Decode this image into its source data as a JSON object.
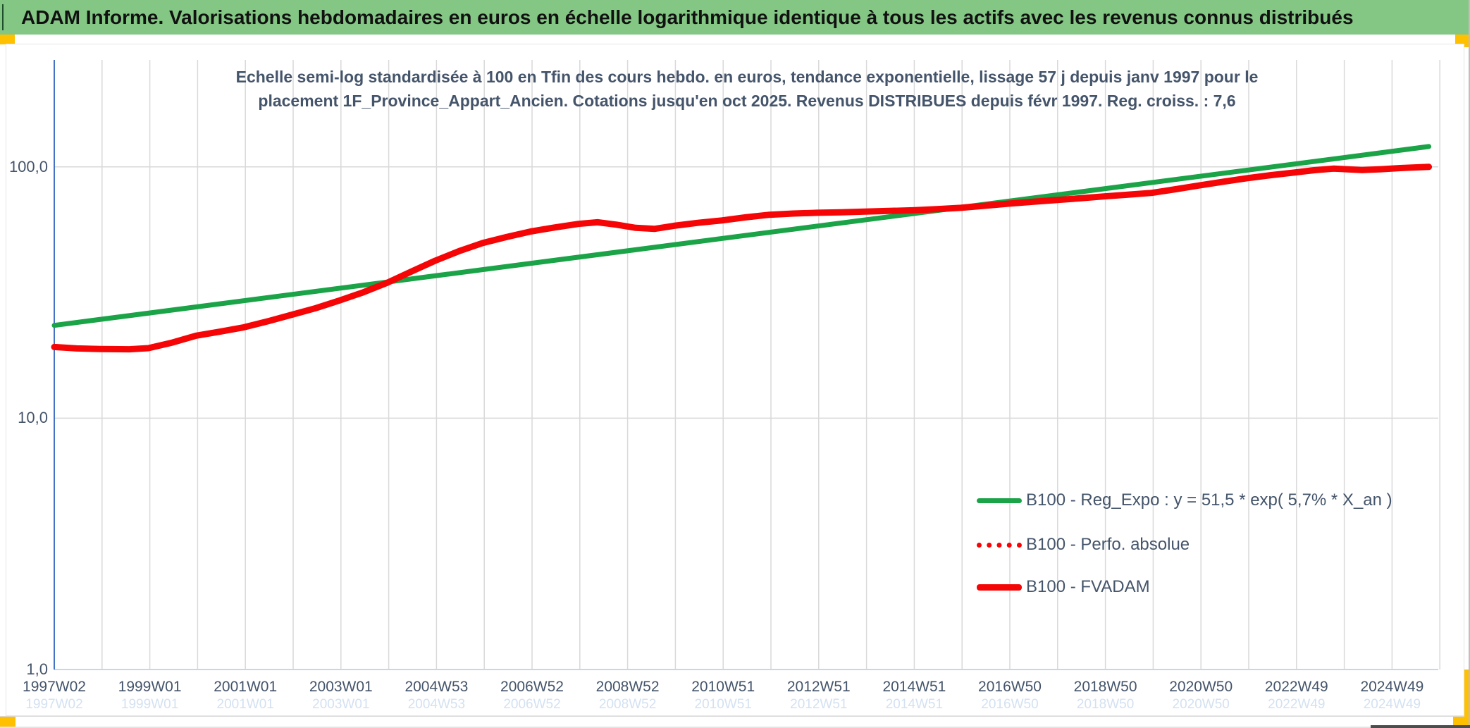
{
  "header": {
    "title": "ADAM Informe. Valorisations hebdomadaires en euros en échelle logarithmique identique à tous les actifs avec les revenus connus distribués"
  },
  "colors": {
    "header_bg": "#84C784",
    "accent_orange": "#FFC000",
    "title_text": "#44546A",
    "axis_text": "#44546A",
    "gridline": "#D9D9D9",
    "y_axis_line": "#4472C4",
    "x_axis_line": "#C9D6E8",
    "green_series": "#1AA347",
    "red_series": "#F50505"
  },
  "chart_data": {
    "type": "line",
    "title_lines": [
      "Echelle semi-log standardisée à 100 en Tfin des cours hebdo. en euros, tendance exponentielle, lissage 57 j depuis janv 1997 pour le",
      "placement 1F_Province_Appart_Ancien. Cotations jusqu'en oct 2025. Revenus DISTRIBUES depuis févr 1997. Reg. croiss. : 7,6"
    ],
    "y_axis": {
      "scale": "log",
      "ticks": [
        {
          "label": "100,0",
          "value": 100
        },
        {
          "label": "10,0",
          "value": 10
        },
        {
          "label": "1,0",
          "value": 1
        }
      ]
    },
    "x_axis": {
      "unit": "ISO week",
      "tick_labels": [
        "1997W02",
        "1999W01",
        "2001W01",
        "2003W01",
        "2004W53",
        "2006W52",
        "2008W52",
        "2010W51",
        "2012W51",
        "2014W51",
        "2016W50",
        "2018W50",
        "2020W50",
        "2022W49",
        "2024W49"
      ],
      "start_year": 1997.03,
      "end_year": 2025.8,
      "gridlines": "annual"
    },
    "legend": [
      {
        "label": "B100 - Reg_Expo : y = 51,5 * exp( 5,7% * X_an )",
        "color": "#1AA347",
        "style": "solid"
      },
      {
        "label": "B100 - Perfo. absolue",
        "color": "#F50505",
        "style": "dotted"
      },
      {
        "label": "B100 - FVADAM",
        "color": "#F50505",
        "style": "solid-thick"
      }
    ],
    "series": [
      {
        "name": "B100 - Reg_Expo",
        "style": "solid",
        "color": "#1AA347",
        "width": 7,
        "points": [
          [
            1997.03,
            23.4
          ],
          [
            2025.8,
            120.5
          ]
        ]
      },
      {
        "name": "B100 - Perfo. absolue",
        "style": "dotted",
        "color": "#F50505",
        "width": 5,
        "points_same_as": 2,
        "note": "coincides with FVADAM (revenues distributed), hidden under it"
      },
      {
        "name": "B100 - FVADAM",
        "style": "solid",
        "color": "#F50505",
        "width": 9,
        "points": [
          [
            1997.03,
            19.2
          ],
          [
            1997.5,
            18.95
          ],
          [
            1998.0,
            18.85
          ],
          [
            1998.6,
            18.8
          ],
          [
            1999.0,
            19.0
          ],
          [
            1999.5,
            20.0
          ],
          [
            2000.0,
            21.3
          ],
          [
            2000.5,
            22.1
          ],
          [
            2001.0,
            23.0
          ],
          [
            2001.5,
            24.3
          ],
          [
            2002.0,
            25.8
          ],
          [
            2002.5,
            27.4
          ],
          [
            2003.0,
            29.4
          ],
          [
            2003.5,
            31.7
          ],
          [
            2004.0,
            34.6
          ],
          [
            2004.5,
            38.3
          ],
          [
            2005.0,
            42.3
          ],
          [
            2005.5,
            46.2
          ],
          [
            2006.0,
            49.8
          ],
          [
            2006.5,
            52.6
          ],
          [
            2007.0,
            55.3
          ],
          [
            2007.5,
            57.4
          ],
          [
            2008.0,
            59.3
          ],
          [
            2008.4,
            60.2
          ],
          [
            2008.8,
            58.9
          ],
          [
            2009.2,
            57.2
          ],
          [
            2009.6,
            56.7
          ],
          [
            2010.0,
            58.3
          ],
          [
            2010.5,
            59.9
          ],
          [
            2011.0,
            61.2
          ],
          [
            2011.5,
            63.0
          ],
          [
            2012.0,
            64.5
          ],
          [
            2012.5,
            65.2
          ],
          [
            2013.0,
            65.7
          ],
          [
            2013.5,
            66.0
          ],
          [
            2014.0,
            66.4
          ],
          [
            2014.5,
            66.8
          ],
          [
            2015.0,
            67.2
          ],
          [
            2015.5,
            67.9
          ],
          [
            2016.0,
            68.7
          ],
          [
            2016.5,
            70.0
          ],
          [
            2017.0,
            71.4
          ],
          [
            2017.5,
            72.6
          ],
          [
            2018.0,
            73.8
          ],
          [
            2018.5,
            75.0
          ],
          [
            2019.0,
            76.3
          ],
          [
            2019.5,
            77.5
          ],
          [
            2020.0,
            78.8
          ],
          [
            2020.5,
            81.5
          ],
          [
            2021.0,
            84.4
          ],
          [
            2021.5,
            87.3
          ],
          [
            2022.0,
            90.2
          ],
          [
            2022.5,
            92.7
          ],
          [
            2023.0,
            95.0
          ],
          [
            2023.4,
            97.0
          ],
          [
            2023.8,
            98.4
          ],
          [
            2024.1,
            97.8
          ],
          [
            2024.4,
            97.2
          ],
          [
            2024.8,
            97.9
          ],
          [
            2025.2,
            98.9
          ],
          [
            2025.5,
            99.5
          ],
          [
            2025.8,
            100.0
          ]
        ]
      }
    ]
  }
}
